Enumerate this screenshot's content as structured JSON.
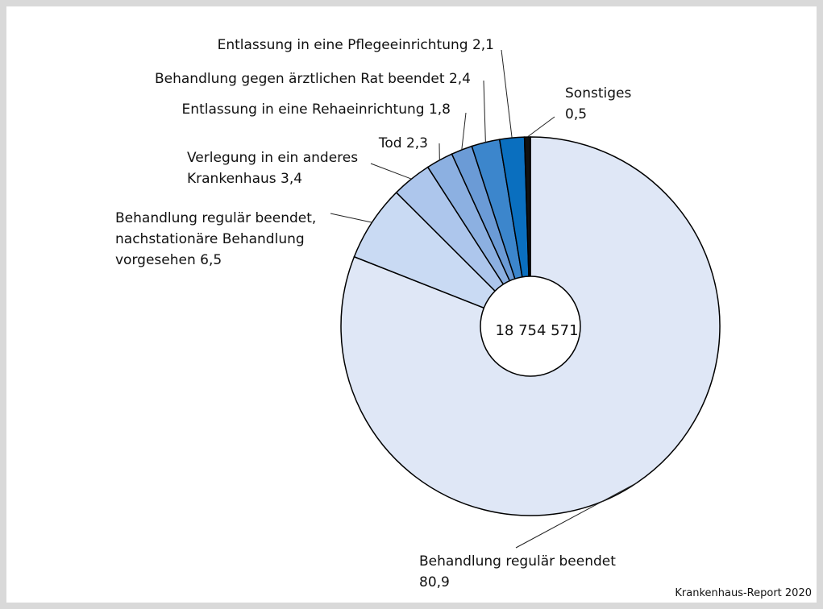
{
  "chart_data": {
    "type": "donut",
    "categories": [
      "Behandlung regulär beendet",
      "Behandlung regulär beendet, nachstationäre Behandlung vorgesehen",
      "Verlegung in ein anderes Krankenhaus",
      "Tod",
      "Entlassung in eine Rehaeinrichtung",
      "Behandlung gegen ärztlichen Rat beendet",
      "Entlassung in eine Pflegeeinrichtung",
      "Sonstiges"
    ],
    "values": [
      80.9,
      6.5,
      3.4,
      2.3,
      1.8,
      2.4,
      2.1,
      0.5
    ],
    "value_labels": [
      "80,9",
      "6,5",
      "3,4",
      "2,3",
      "1,8",
      "2,4",
      "2,1",
      "0,5"
    ],
    "colors": [
      "#dfe7f6",
      "#c9daf3",
      "#adc6ec",
      "#8cb0e1",
      "#6b9bd6",
      "#3c86cc",
      "#0a6fbf",
      "#111111"
    ],
    "center_label": "18 754 571",
    "source": "Krankenhaus-Report 2020"
  }
}
